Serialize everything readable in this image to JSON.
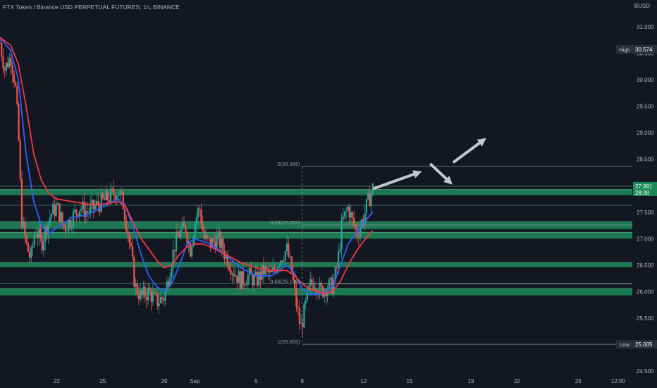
{
  "header": {
    "title": "FTX Token / Binance USD PERPETUAL FUTURES, 1h, BINANCE",
    "currency": "BUSD"
  },
  "colors": {
    "background": "#131722",
    "axis_text": "#b2b5be",
    "up_candle": "#26a69a",
    "down_candle": "#ef5350",
    "ma_fast": "#2962ff",
    "ma_slow": "#f23645",
    "zone": "#1e8a58",
    "fib_line": "#8a8e99",
    "arrow": "#c3c7cf",
    "last_price_bg": "#1b8a5a",
    "high_low_bg": "#2a2e39",
    "zone_line": "#4f9f7d"
  },
  "chart_data": {
    "type": "candlestick",
    "symbol": "FTX Token / Binance USD PERPETUAL FUTURES",
    "interval": "1h",
    "exchange": "BINANCE",
    "y_axis": {
      "ticks": [
        31.0,
        30.5,
        30.0,
        29.5,
        29.0,
        28.5,
        28.0,
        27.5,
        27.0,
        26.5,
        26.0,
        25.5,
        25.0,
        24.5
      ],
      "tick_labels": [
        "31.000",
        "30.500",
        "30.000",
        "29.500",
        "29.000",
        "28.500",
        "28.000",
        "27.500",
        "27.000",
        "26.500",
        "26.000",
        "25.500",
        "25.000",
        "24.500"
      ],
      "range": [
        24.4,
        31.2
      ]
    },
    "x_axis": {
      "ticks": [
        22,
        25,
        29,
        31,
        35,
        38,
        42,
        45,
        49,
        52,
        56,
        58.6
      ],
      "tick_labels": [
        "22",
        "25",
        "29",
        "Sep",
        "5",
        "8",
        "12",
        "15",
        "19",
        "22",
        "26",
        "12:00"
      ],
      "range": [
        18.3,
        59.2
      ]
    },
    "approx_close_path": [
      [
        18.3,
        30.7
      ],
      [
        18.6,
        30.2
      ],
      [
        19.0,
        30.45
      ],
      [
        19.3,
        29.9
      ],
      [
        19.5,
        29.0
      ],
      [
        19.7,
        27.4
      ],
      [
        20.0,
        26.9
      ],
      [
        20.3,
        26.6
      ],
      [
        20.6,
        27.2
      ],
      [
        21.0,
        26.9
      ],
      [
        21.4,
        27.3
      ],
      [
        21.7,
        27.5
      ],
      [
        22.0,
        27.6
      ],
      [
        22.5,
        27.2
      ],
      [
        23.0,
        27.4
      ],
      [
        23.5,
        27.6
      ],
      [
        24.0,
        27.5
      ],
      [
        24.5,
        27.6
      ],
      [
        25.0,
        27.7
      ],
      [
        25.5,
        27.8
      ],
      [
        26.0,
        27.9
      ],
      [
        26.3,
        27.7
      ],
      [
        26.6,
        27.2
      ],
      [
        26.9,
        26.6
      ],
      [
        27.1,
        26.1
      ],
      [
        27.5,
        25.9
      ],
      [
        28.0,
        26.0
      ],
      [
        28.5,
        25.8
      ],
      [
        29.0,
        25.9
      ],
      [
        29.3,
        26.3
      ],
      [
        29.7,
        26.9
      ],
      [
        30.0,
        27.1
      ],
      [
        30.4,
        27.2
      ],
      [
        30.7,
        26.8
      ],
      [
        31.0,
        27.3
      ],
      [
        31.3,
        27.6
      ],
      [
        31.6,
        27.0
      ],
      [
        32.0,
        26.9
      ],
      [
        32.5,
        27.0
      ],
      [
        33.0,
        26.7
      ],
      [
        33.5,
        26.4
      ],
      [
        34.0,
        26.2
      ],
      [
        34.5,
        26.3
      ],
      [
        35.0,
        26.2
      ],
      [
        35.5,
        26.4
      ],
      [
        36.0,
        26.3
      ],
      [
        36.5,
        26.6
      ],
      [
        37.0,
        26.8
      ],
      [
        37.3,
        26.4
      ],
      [
        37.6,
        25.8
      ],
      [
        37.9,
        25.3
      ],
      [
        38.2,
        25.7
      ],
      [
        38.5,
        26.1
      ],
      [
        38.8,
        26.2
      ],
      [
        39.2,
        26.0
      ],
      [
        39.6,
        26.1
      ],
      [
        40.0,
        26.1
      ],
      [
        40.3,
        26.5
      ],
      [
        40.6,
        27.3
      ],
      [
        41.0,
        27.6
      ],
      [
        41.3,
        27.3
      ],
      [
        41.6,
        27.1
      ],
      [
        42.0,
        27.4
      ],
      [
        42.3,
        27.7
      ],
      [
        42.6,
        27.95
      ]
    ],
    "series": [
      {
        "points": [
          [
            18.3,
            30.8
          ],
          [
            19.0,
            30.55
          ],
          [
            19.5,
            30.0
          ],
          [
            20.0,
            28.6
          ],
          [
            20.5,
            27.7
          ],
          [
            21.0,
            27.25
          ],
          [
            21.5,
            27.1
          ],
          [
            22.0,
            27.2
          ],
          [
            23.0,
            27.4
          ],
          [
            24.0,
            27.45
          ],
          [
            25.0,
            27.6
          ],
          [
            26.0,
            27.75
          ],
          [
            26.5,
            27.6
          ],
          [
            27.0,
            27.2
          ],
          [
            27.5,
            26.7
          ],
          [
            28.0,
            26.3
          ],
          [
            28.5,
            26.1
          ],
          [
            29.0,
            26.0
          ],
          [
            29.5,
            26.15
          ],
          [
            30.0,
            26.5
          ],
          [
            30.5,
            26.9
          ],
          [
            31.0,
            27.0
          ],
          [
            31.5,
            26.95
          ],
          [
            32.0,
            26.9
          ],
          [
            33.0,
            26.7
          ],
          [
            34.0,
            26.45
          ],
          [
            35.0,
            26.3
          ],
          [
            36.0,
            26.3
          ],
          [
            37.0,
            26.5
          ],
          [
            37.5,
            26.35
          ],
          [
            38.0,
            26.05
          ],
          [
            38.5,
            25.95
          ],
          [
            39.0,
            25.95
          ],
          [
            39.5,
            26.0
          ],
          [
            40.0,
            26.1
          ],
          [
            40.5,
            26.5
          ],
          [
            41.0,
            26.9
          ],
          [
            41.5,
            27.1
          ],
          [
            42.0,
            27.3
          ],
          [
            42.6,
            27.5
          ]
        ]
      },
      {
        "points": [
          [
            18.3,
            30.8
          ],
          [
            19.0,
            30.65
          ],
          [
            19.5,
            30.3
          ],
          [
            20.0,
            29.5
          ],
          [
            20.5,
            28.6
          ],
          [
            21.0,
            28.1
          ],
          [
            21.5,
            27.85
          ],
          [
            22.0,
            27.75
          ],
          [
            23.0,
            27.7
          ],
          [
            24.0,
            27.65
          ],
          [
            25.0,
            27.65
          ],
          [
            26.0,
            27.7
          ],
          [
            26.5,
            27.6
          ],
          [
            27.0,
            27.3
          ],
          [
            27.5,
            27.0
          ],
          [
            28.0,
            26.8
          ],
          [
            28.5,
            26.6
          ],
          [
            29.0,
            26.45
          ],
          [
            29.5,
            26.5
          ],
          [
            30.0,
            26.7
          ],
          [
            30.5,
            26.85
          ],
          [
            31.0,
            26.9
          ],
          [
            31.5,
            26.9
          ],
          [
            32.0,
            26.85
          ],
          [
            33.0,
            26.7
          ],
          [
            34.0,
            26.55
          ],
          [
            35.0,
            26.45
          ],
          [
            36.0,
            26.4
          ],
          [
            37.0,
            26.4
          ],
          [
            37.5,
            26.3
          ],
          [
            38.0,
            26.15
          ],
          [
            38.5,
            26.05
          ],
          [
            39.0,
            26.0
          ],
          [
            39.5,
            25.97
          ],
          [
            40.0,
            26.0
          ],
          [
            40.5,
            26.2
          ],
          [
            41.0,
            26.5
          ],
          [
            41.5,
            26.75
          ],
          [
            42.0,
            26.95
          ],
          [
            42.6,
            27.15
          ]
        ]
      }
    ],
    "zones": [
      [
        27.82,
        27.93
      ],
      [
        27.18,
        27.32
      ],
      [
        27.0,
        27.12
      ],
      [
        26.46,
        26.55
      ],
      [
        25.93,
        26.06
      ]
    ],
    "reference_lines": [
      27.99,
      27.63,
      26.16
    ],
    "fibonacci": [
      {
        "label": "0(28.366)",
        "value": 28.366
      },
      {
        "label": "0.33(27.257)",
        "value": 27.257
      },
      {
        "label": "0.66(26.148)",
        "value": 26.148
      },
      {
        "label": "1(25.005)",
        "value": 25.005
      }
    ],
    "arrows": [
      {
        "from": [
          42.7,
          27.95
        ],
        "to": [
          45.8,
          28.27
        ]
      },
      {
        "from": [
          46.4,
          28.4
        ],
        "to": [
          47.8,
          28.02
        ]
      },
      {
        "from": [
          47.9,
          28.45
        ],
        "to": [
          50.0,
          28.9
        ]
      }
    ],
    "price_labels": {
      "last": {
        "value": 27.991,
        "text": "27.991",
        "countdown": "28:08"
      },
      "high": {
        "value": 30.574,
        "label": "High",
        "text": "30.574"
      },
      "low": {
        "value": 25.005,
        "label": "Low",
        "text": "25.005"
      }
    }
  }
}
